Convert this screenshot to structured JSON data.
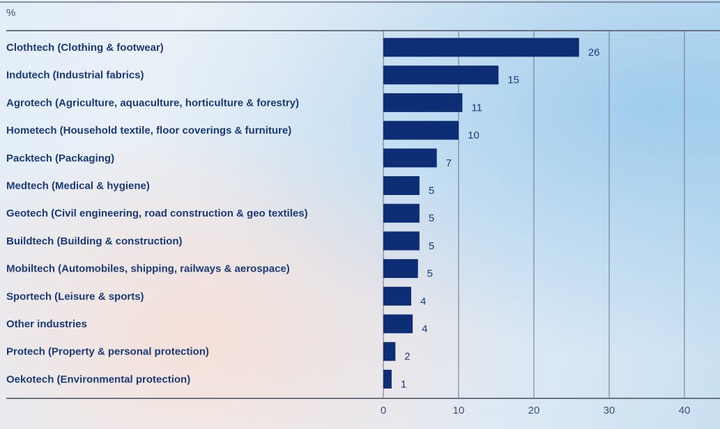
{
  "chart_data": {
    "type": "bar",
    "orientation": "horizontal",
    "unit": "%",
    "categories": [
      "Clothtech (Clothing & footwear)",
      "Indutech (Industrial fabrics)",
      "Agrotech (Agriculture, aquaculture, horticulture & forestry)",
      "Hometech (Household textile, floor coverings & furniture)",
      "Packtech (Packaging)",
      "Medtech (Medical & hygiene)",
      "Geotech (Civil engineering, road construction & geo textiles)",
      "Buildtech (Building & construction)",
      "Mobiltech (Automobiles, shipping, railways & aerospace)",
      "Sportech (Leisure & sports)",
      "Other industries",
      "Protech (Property & personal protection)",
      "Oekotech (Environmental protection)"
    ],
    "values": [
      26,
      15,
      11,
      10,
      7,
      5,
      5,
      5,
      5,
      4,
      4,
      2,
      1
    ],
    "bar_lengths": [
      26,
      15.3,
      10.5,
      10,
      7.1,
      4.8,
      4.8,
      4.8,
      4.6,
      3.7,
      3.9,
      1.6,
      1.1
    ],
    "x_ticks": [
      0,
      10,
      20,
      30,
      40
    ],
    "xlim": [
      0,
      40
    ],
    "grid": true,
    "colors": {
      "bar": "#0d2e75",
      "text": "#1b3a78",
      "axis": "#6b7280",
      "grid": "#6b7280"
    }
  }
}
